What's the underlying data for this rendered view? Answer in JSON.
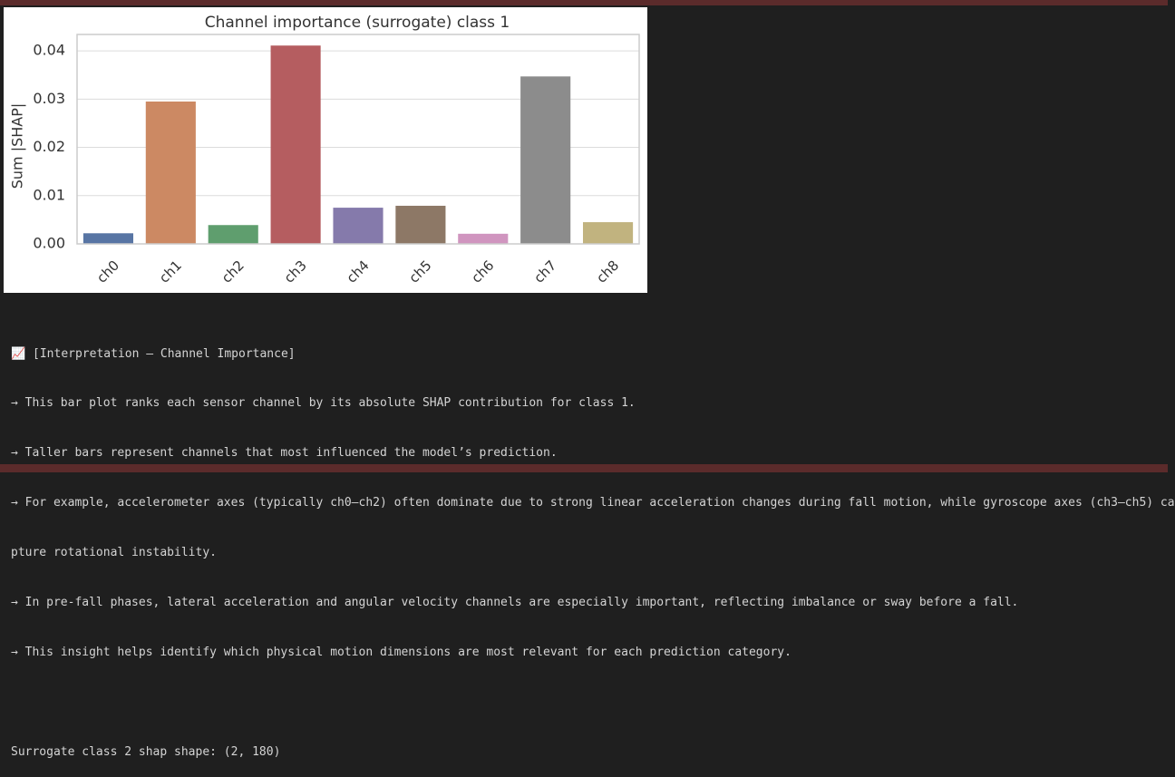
{
  "chart_data": {
    "type": "bar",
    "title": "Channel importance (surrogate) class 1",
    "y_label": "Sum |SHAP|",
    "categories": [
      "ch0",
      "ch1",
      "ch2",
      "ch3",
      "ch4",
      "ch5",
      "ch6",
      "ch7",
      "ch8"
    ],
    "values": [
      0.0022,
      0.0295,
      0.0039,
      0.0411,
      0.0075,
      0.0079,
      0.0021,
      0.0347,
      0.0045
    ],
    "colors": [
      "#5875a4",
      "#cc8963",
      "#5f9e6e",
      "#b55d60",
      "#857aab",
      "#8d7866",
      "#d095bf",
      "#8c8c8c",
      "#c1b37f"
    ],
    "ylim": [
      0,
      0.0434
    ],
    "yticks": [
      {
        "value": 0,
        "label": "0.00"
      },
      {
        "value": 0.01,
        "label": "0.01"
      },
      {
        "value": 0.02,
        "label": "0.02"
      },
      {
        "value": 0.03,
        "label": "0.03"
      },
      {
        "value": 0.04,
        "label": "0.04"
      }
    ],
    "grid": true
  },
  "output": {
    "lines": [
      "📈 [Interpretation – Channel Importance]",
      "→ This bar plot ranks each sensor channel by its absolute SHAP contribution for class 1.",
      "→ Taller bars represent channels that most influenced the model’s prediction.",
      "→ For example, accelerometer axes (typically ch0–ch2) often dominate due to strong linear acceleration changes during fall motion, while gyroscope axes (ch3–ch5) ca",
      "pture rotational instability.",
      "→ In pre-fall phases, lateral acceleration and angular velocity channels are especially important, reflecting imbalance or sway before a fall.",
      "→ This insight helps identify which physical motion dimensions are most relevant for each prediction category."
    ],
    "shape_line": "Surrogate class 2 shap shape: (2, 180)"
  }
}
